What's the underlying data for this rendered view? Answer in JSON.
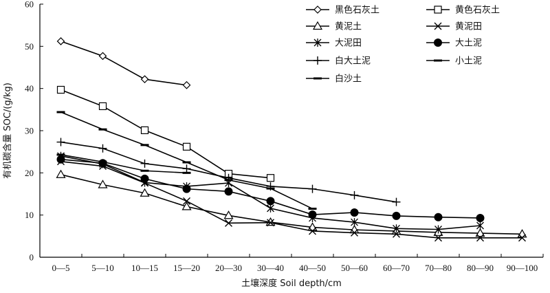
{
  "chart_data": {
    "type": "line",
    "title": "",
    "xlabel": "土壤深度 Soil depth/cm",
    "ylabel": "有机碳含量 SOC/(g/kg)",
    "ylim": [
      0,
      60
    ],
    "yticks": [
      "0",
      "10",
      "20",
      "30",
      "40",
      "50",
      "60"
    ],
    "categories": [
      "0—5",
      "5—10",
      "10—15",
      "15—20",
      "20—30",
      "30—40",
      "40—50",
      "50—60",
      "60—70",
      "70—80",
      "80—90",
      "90—100"
    ],
    "grid": false,
    "legend_position": "top-right",
    "series": [
      {
        "name": "黑色石灰土",
        "marker": "diamond",
        "values": [
          51.2,
          47.7,
          42.2,
          40.8,
          null,
          null,
          null,
          null,
          null,
          null,
          null,
          null
        ]
      },
      {
        "name": "黄色石灰土",
        "marker": "square",
        "values": [
          39.7,
          35.8,
          30.1,
          26.2,
          19.8,
          18.8,
          null,
          null,
          null,
          null,
          null,
          null
        ]
      },
      {
        "name": "黄泥土",
        "marker": "triangle",
        "values": [
          19.6,
          17.2,
          15.2,
          12.0,
          9.9,
          8.3,
          7.1,
          6.5,
          6.2,
          5.9,
          5.7,
          5.5
        ]
      },
      {
        "name": "黄泥田",
        "marker": "x",
        "values": [
          22.7,
          21.6,
          17.6,
          13.3,
          8.1,
          8.2,
          6.2,
          5.8,
          5.5,
          4.6,
          4.6,
          4.6
        ]
      },
      {
        "name": "大泥田",
        "marker": "asterisk",
        "values": [
          24.0,
          22.1,
          17.7,
          16.8,
          17.6,
          11.6,
          9.3,
          8.3,
          6.8,
          6.6,
          7.5,
          null
        ]
      },
      {
        "name": "大土泥",
        "marker": "circle",
        "values": [
          23.2,
          22.3,
          18.6,
          16.2,
          15.6,
          13.3,
          10.1,
          10.6,
          9.8,
          9.5,
          9.3,
          null
        ]
      },
      {
        "name": "白大土泥",
        "marker": "plus",
        "values": [
          27.3,
          25.8,
          22.2,
          21.0,
          18.8,
          16.8,
          16.2,
          14.7,
          13.1,
          null,
          null,
          null
        ]
      },
      {
        "name": "小土泥",
        "marker": "dash",
        "values": [
          34.4,
          30.3,
          26.6,
          22.5,
          18.3,
          16.3,
          11.5,
          null,
          null,
          null,
          null,
          null
        ]
      },
      {
        "name": "白沙土",
        "marker": "dash",
        "values": [
          24.3,
          22.6,
          20.5,
          20.0,
          null,
          null,
          null,
          null,
          null,
          null,
          null,
          null
        ]
      }
    ]
  }
}
